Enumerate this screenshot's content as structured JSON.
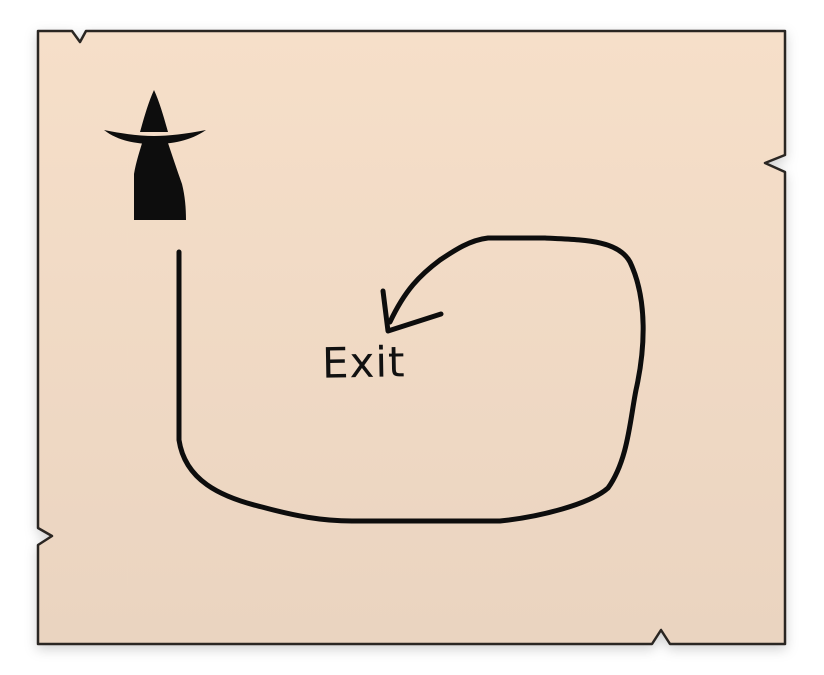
{
  "map": {
    "paper_color": "#f2dcc7",
    "ink_color": "#0d0d0d",
    "start_marker_icon": "wizard-icon",
    "path_end_icon": "arrowhead-icon",
    "exit_label": "Exit"
  }
}
